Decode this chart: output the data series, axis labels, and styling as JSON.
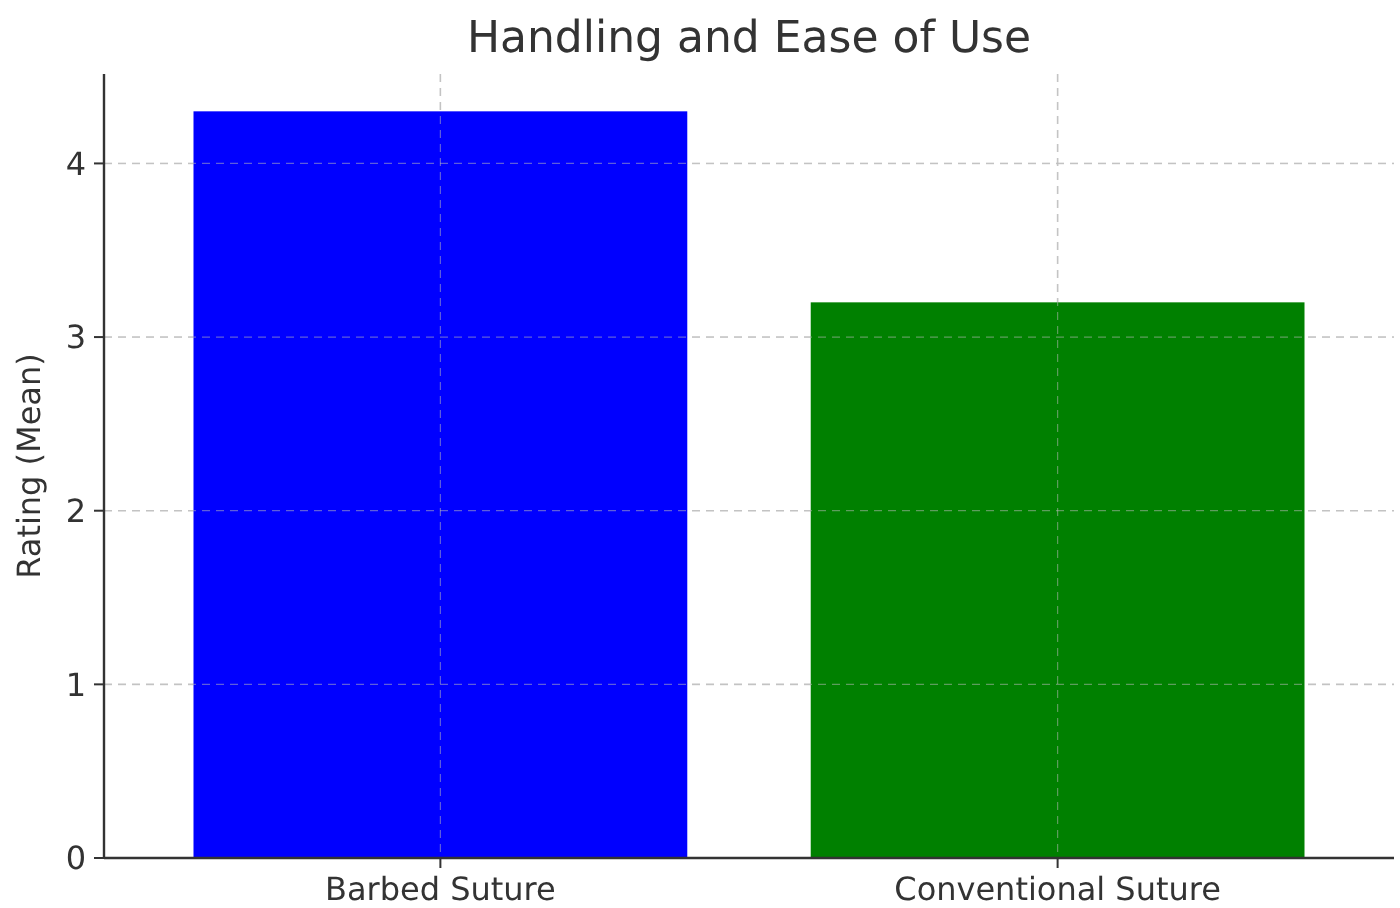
{
  "chart_data": {
    "type": "bar",
    "title": "Handling and Ease of Use",
    "ylabel": "Rating (Mean)",
    "categories": [
      "Barbed Suture",
      "Conventional Suture"
    ],
    "values": [
      4.3,
      3.2
    ],
    "colors": [
      "#0000ff",
      "#008000"
    ],
    "ylim": [
      0,
      4.515
    ],
    "yticks": [
      0,
      1,
      2,
      3,
      4
    ],
    "grid": true
  }
}
